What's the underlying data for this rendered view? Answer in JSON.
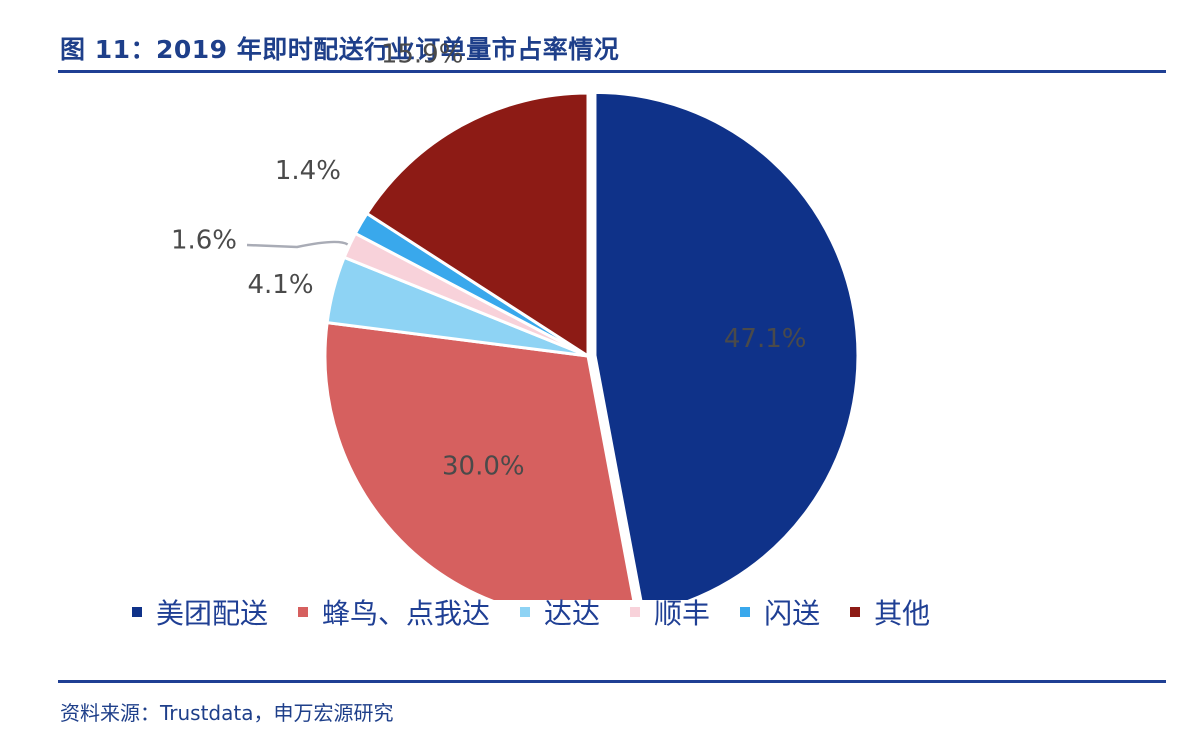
{
  "figure": {
    "title": "图 11：2019 年即时配送行业订单量市占率情况",
    "source": "资料来源：Trustdata，申万宏源研究"
  },
  "chart_data": {
    "type": "pie",
    "title": "图 11：2019 年即时配送行业订单量市占率情况",
    "start_angle_deg": 0,
    "direction": "clockwise",
    "legend_position": "bottom",
    "categories": [
      "美团配送",
      "蜂鸟、点我达",
      "达达",
      "顺丰",
      "闪送",
      "其他"
    ],
    "values": [
      47.1,
      30.0,
      4.1,
      1.6,
      1.4,
      15.9
    ],
    "labels": [
      "47.1%",
      "30.0%",
      "4.1%",
      "1.6%",
      "1.4%",
      "15.9%"
    ],
    "colors": [
      "#0f3289",
      "#d6605f",
      "#8ed3f4",
      "#f8d2da",
      "#39a8ec",
      "#8d1b15"
    ],
    "label_color": "#4a4a4a"
  }
}
